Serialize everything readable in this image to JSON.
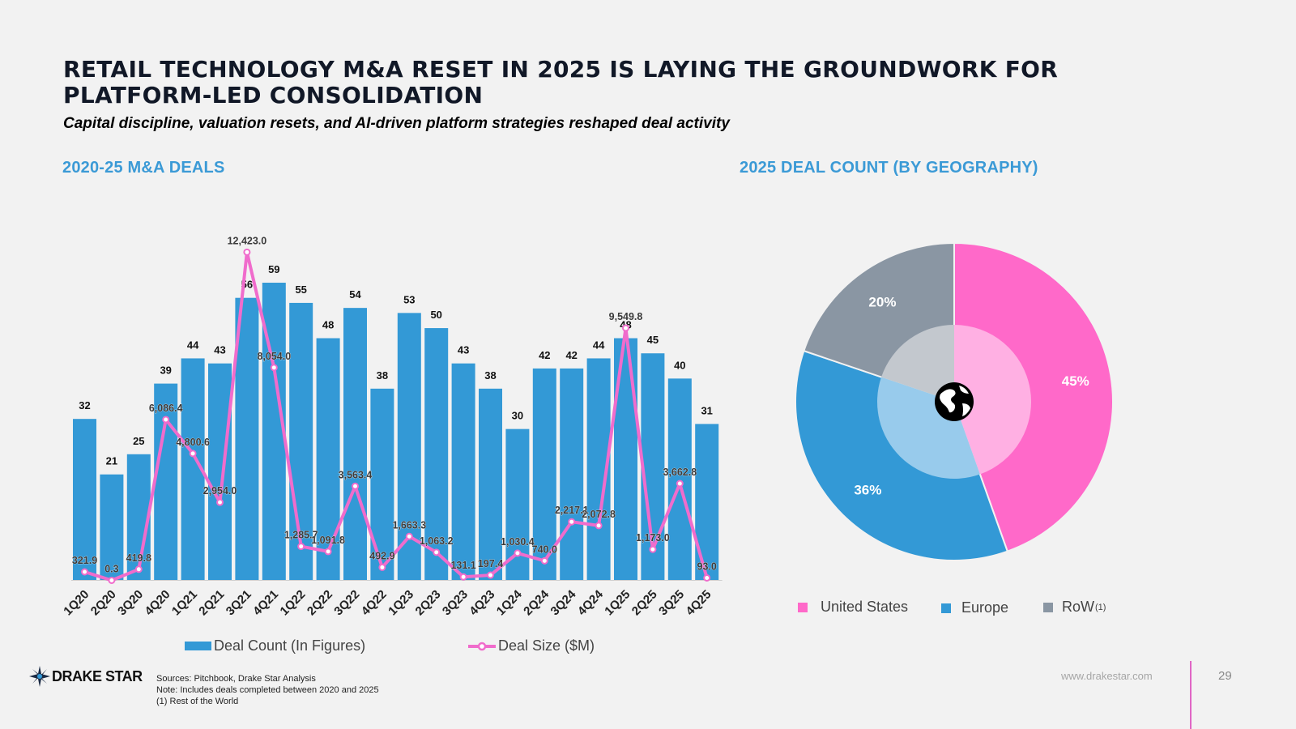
{
  "header": {
    "title": "RETAIL TECHNOLOGY M&A RESET IN 2025 IS LAYING THE GROUNDWORK FOR PLATFORM-LED CONSOLIDATION",
    "subtitle": "Capital discipline, valuation resets, and AI-driven platform strategies reshaped deal activity"
  },
  "left_section": {
    "title": "2020-25 M&A DEALS"
  },
  "right_section": {
    "title": "2025 DEAL COUNT (BY GEOGRAPHY)"
  },
  "chart_data": [
    {
      "type": "bar",
      "title": "2020-25 M&A DEALS",
      "categories": [
        "1Q20",
        "2Q20",
        "3Q20",
        "4Q20",
        "1Q21",
        "2Q21",
        "3Q21",
        "4Q21",
        "1Q22",
        "2Q22",
        "3Q22",
        "4Q22",
        "1Q23",
        "2Q23",
        "3Q23",
        "4Q23",
        "1Q24",
        "2Q24",
        "3Q24",
        "4Q24",
        "1Q25",
        "2Q25",
        "3Q25",
        "4Q25"
      ],
      "series": [
        {
          "name": "Deal Count (In Figures)",
          "kind": "bar",
          "values": [
            32,
            21,
            25,
            39,
            44,
            43,
            56,
            59,
            55,
            48,
            54,
            38,
            53,
            50,
            43,
            38,
            30,
            42,
            42,
            44,
            48,
            45,
            40,
            31
          ],
          "labels": [
            "32",
            "21",
            "25",
            "39",
            "44",
            "43",
            "56",
            "59",
            "55",
            "48",
            "54",
            "38",
            "53",
            "50",
            "43",
            "38",
            "30",
            "42",
            "42",
            "44",
            "48",
            "45",
            "40",
            "31"
          ]
        },
        {
          "name": "Deal Size ($M)",
          "kind": "line",
          "values": [
            321.9,
            0.3,
            419.8,
            6086.4,
            4800.6,
            2954.0,
            12423.0,
            8054.0,
            1285.7,
            1091.8,
            3563.4,
            492.9,
            1663.3,
            1063.2,
            131.1,
            197.4,
            1030.4,
            740.0,
            2217.1,
            2072.8,
            9549.8,
            1173.0,
            3662.8,
            93.0
          ],
          "labels": [
            "321.9",
            "0.3",
            "419.8",
            "6,086.4",
            "4,800.6",
            "2,954.0",
            "12,423.0",
            "8,054.0",
            "1,285.7",
            "1,091.8",
            "3,563.4",
            "492.9",
            "1,663.3",
            "1,063.2",
            "131.1",
            "197.4",
            "1,030.4",
            "740.0",
            "2,217.1",
            "2,072.8",
            "9,549.8",
            "1,173.0",
            "3,662.8",
            "93.0"
          ]
        }
      ],
      "ylim_count": [
        0,
        70
      ],
      "ylim_size": [
        0,
        13000
      ],
      "legend": [
        {
          "label": "Deal Count (In Figures)",
          "color": "#3399d6"
        },
        {
          "label": "Deal Size ($M)",
          "color": "#f06ccc"
        }
      ]
    },
    {
      "type": "pie",
      "title": "2025 DEAL COUNT (BY GEOGRAPHY)",
      "style": "donut-with-inner-ring",
      "slices": [
        {
          "label": "United States",
          "value": 45,
          "text": "45%",
          "color": "#ff69c9",
          "inner_color": "#ffb0e3"
        },
        {
          "label": "Europe",
          "value": 36,
          "text": "36%",
          "color": "#3399d6",
          "inner_color": "#98cbec"
        },
        {
          "label": "RoW",
          "value": 20,
          "text": "20%",
          "color": "#8a96a3",
          "inner_color": "#c3c8ce"
        }
      ],
      "legend": [
        {
          "label": "United States",
          "color": "#ff69c9"
        },
        {
          "label": "Europe",
          "color": "#3399d6"
        },
        {
          "label": "RoW",
          "sup": "(1)",
          "color": "#8a96a3"
        }
      ]
    }
  ],
  "footer": {
    "logo_text": "DRAKE STAR",
    "sources": [
      "Sources: Pitchbook, Drake Star Analysis",
      "Note: Includes deals completed between 2020 and 2025",
      "(1) Rest of the World"
    ],
    "url": "www.drakestar.com",
    "page_number": "29"
  }
}
